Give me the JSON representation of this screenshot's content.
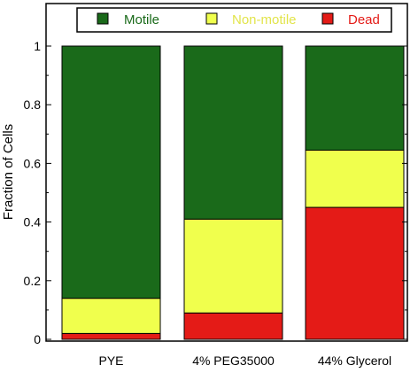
{
  "chart_data": {
    "type": "bar",
    "stacked": true,
    "categories": [
      "PYE",
      "4% PEG35000",
      "44% Glycerol"
    ],
    "series": [
      {
        "name": "Dead",
        "values": [
          0.02,
          0.09,
          0.45
        ]
      },
      {
        "name": "Non-motile",
        "values": [
          0.12,
          0.32,
          0.195
        ]
      },
      {
        "name": "Motile",
        "values": [
          0.86,
          0.59,
          0.355
        ]
      }
    ],
    "ylabel": "Fraction of Cells",
    "xlabel": "",
    "title": "",
    "ylim": [
      0,
      1.1
    ],
    "yticks": [
      "0",
      "0.2",
      "0.4",
      "0.6",
      "0.8",
      "1"
    ],
    "ytick_values": [
      0,
      0.2,
      0.4,
      0.6,
      0.8,
      1
    ],
    "legend": {
      "placement": "top",
      "order": [
        "Motile",
        "Non-motile",
        "Dead"
      ]
    },
    "colors": {
      "Motile": "#1a6a1a",
      "Non-motile": "#f0ff4d",
      "Dead": "#e41b17"
    },
    "legend_text_colors": {
      "Motile": "#1a6a1a",
      "Non-motile": "#e2e44a",
      "Dead": "#e41b17"
    },
    "grid": false
  }
}
